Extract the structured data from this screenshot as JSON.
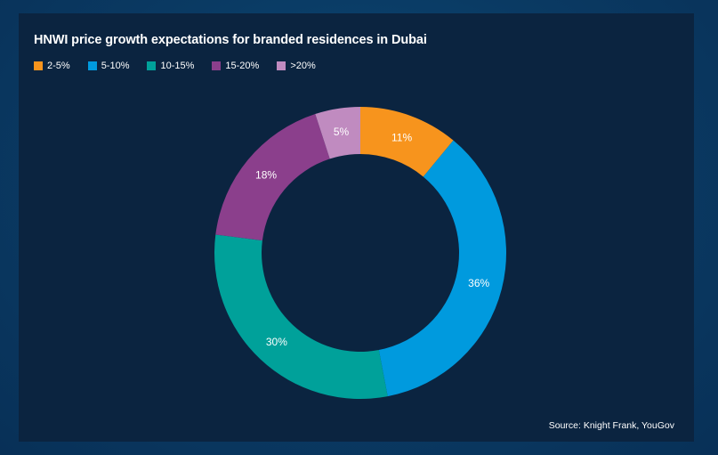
{
  "chart_data": {
    "type": "pie",
    "variant": "donut",
    "title": "HNWI price growth expectations for branded residences in Dubai",
    "categories": [
      "2-5%",
      "5-10%",
      "10-15%",
      "15-20%",
      ">20%"
    ],
    "values": [
      11,
      36,
      30,
      18,
      5
    ],
    "data_labels": [
      "11%",
      "36%",
      "30%",
      "18%",
      "5%"
    ],
    "colors": [
      "#f7941d",
      "#009ade",
      "#00a19a",
      "#8b3f8c",
      "#c08bc0"
    ],
    "legend_position": "top-left",
    "start_angle_deg": 0,
    "direction": "clockwise",
    "source": "Source: Knight Frank, YouGov"
  }
}
